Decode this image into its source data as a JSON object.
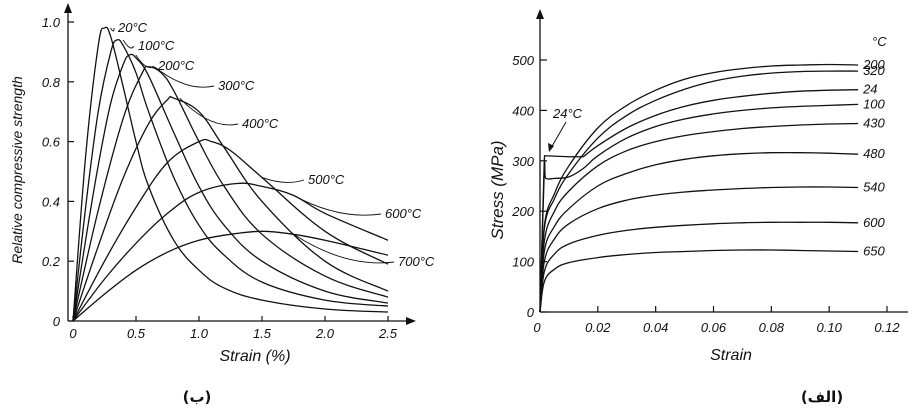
{
  "chart_data": [
    {
      "type": "line",
      "caption": "(ب)",
      "xlabel": "Strain (%)",
      "ylabel": "Relative compressive strength",
      "xlim": [
        0,
        2.5
      ],
      "ylim": [
        0,
        1.0
      ],
      "xticks": [
        "0",
        "0.5",
        "1.0",
        "1.5",
        "2.0",
        "2.5"
      ],
      "yticks": [
        "0",
        "0.2",
        "0.4",
        "0.6",
        "0.8",
        "1.0"
      ],
      "grid": false,
      "series": [
        {
          "name": "20°C",
          "x": [
            0,
            0.1,
            0.2,
            0.25,
            0.3,
            0.4,
            0.5,
            0.6,
            0.8,
            1.0,
            1.2,
            1.5,
            2.0,
            2.5
          ],
          "y": [
            0,
            0.55,
            0.92,
            0.98,
            0.95,
            0.78,
            0.6,
            0.45,
            0.27,
            0.17,
            0.11,
            0.07,
            0.04,
            0.03
          ]
        },
        {
          "name": "100°C",
          "x": [
            0,
            0.1,
            0.2,
            0.3,
            0.35,
            0.4,
            0.5,
            0.6,
            0.8,
            1.0,
            1.2,
            1.5,
            2.0,
            2.5
          ],
          "y": [
            0,
            0.38,
            0.7,
            0.9,
            0.94,
            0.92,
            0.83,
            0.7,
            0.48,
            0.32,
            0.22,
            0.13,
            0.07,
            0.05
          ]
        },
        {
          "name": "200°C",
          "x": [
            0,
            0.1,
            0.2,
            0.3,
            0.4,
            0.45,
            0.5,
            0.6,
            0.8,
            1.0,
            1.2,
            1.5,
            2.0,
            2.5
          ],
          "y": [
            0,
            0.27,
            0.52,
            0.73,
            0.86,
            0.89,
            0.88,
            0.82,
            0.63,
            0.45,
            0.32,
            0.2,
            0.1,
            0.06
          ]
        },
        {
          "name": "300°C",
          "x": [
            0,
            0.2,
            0.4,
            0.55,
            0.6,
            0.7,
            0.8,
            1.0,
            1.2,
            1.5,
            2.0,
            2.5
          ],
          "y": [
            0,
            0.37,
            0.68,
            0.83,
            0.85,
            0.83,
            0.77,
            0.6,
            0.45,
            0.29,
            0.15,
            0.08
          ]
        },
        {
          "name": "400°C",
          "x": [
            0,
            0.2,
            0.4,
            0.6,
            0.75,
            0.8,
            1.0,
            1.2,
            1.5,
            2.0,
            2.5
          ],
          "y": [
            0,
            0.25,
            0.48,
            0.66,
            0.74,
            0.745,
            0.7,
            0.58,
            0.4,
            0.2,
            0.1
          ]
        },
        {
          "name": "500°C",
          "x": [
            0,
            0.25,
            0.5,
            0.75,
            1.0,
            1.1,
            1.25,
            1.5,
            2.0,
            2.5
          ],
          "y": [
            0,
            0.2,
            0.38,
            0.53,
            0.6,
            0.6,
            0.57,
            0.48,
            0.3,
            0.19
          ]
        },
        {
          "name": "600°C",
          "x": [
            0,
            0.25,
            0.5,
            0.75,
            1.0,
            1.3,
            1.5,
            1.75,
            2.0,
            2.5
          ],
          "y": [
            0,
            0.14,
            0.26,
            0.36,
            0.43,
            0.46,
            0.45,
            0.42,
            0.36,
            0.27
          ]
        },
        {
          "name": "700°C",
          "x": [
            0,
            0.25,
            0.5,
            0.75,
            1.0,
            1.25,
            1.5,
            1.75,
            2.0,
            2.5
          ],
          "y": [
            0,
            0.09,
            0.17,
            0.23,
            0.27,
            0.29,
            0.3,
            0.29,
            0.27,
            0.22
          ]
        }
      ]
    },
    {
      "type": "line",
      "caption": "(الف)",
      "xlabel": "Strain",
      "ylabel": "Stress (MPa)",
      "xlim": [
        0,
        0.12
      ],
      "ylim": [
        0,
        500
      ],
      "xticks": [
        "0",
        "0.02",
        "0.04",
        "0.06",
        "0.08",
        "0.10",
        "0.12"
      ],
      "yticks": [
        "0",
        "100",
        "200",
        "300",
        "400",
        "500"
      ],
      "grid": false,
      "legend_title": "°C",
      "annotation": "24°C",
      "series": [
        {
          "name": "200",
          "x": [
            0,
            0.0015,
            0.005,
            0.01,
            0.02,
            0.03,
            0.04,
            0.05,
            0.06,
            0.07,
            0.08,
            0.09,
            0.1,
            0.11
          ],
          "y": [
            0,
            170,
            235,
            290,
            365,
            410,
            440,
            462,
            475,
            483,
            488,
            490,
            491,
            490
          ]
        },
        {
          "name": "320",
          "x": [
            0,
            0.0015,
            0.005,
            0.01,
            0.02,
            0.03,
            0.04,
            0.05,
            0.06,
            0.07,
            0.08,
            0.09,
            0.1,
            0.11
          ],
          "y": [
            0,
            165,
            225,
            275,
            345,
            390,
            420,
            442,
            458,
            468,
            474,
            477,
            478,
            478
          ]
        },
        {
          "name": "24",
          "x": [
            0,
            0.0015,
            0.0016,
            0.01,
            0.015,
            0.02,
            0.03,
            0.04,
            0.05,
            0.06,
            0.07,
            0.08,
            0.09,
            0.1,
            0.11
          ],
          "y": [
            0,
            305,
            310,
            308,
            308,
            330,
            365,
            390,
            408,
            420,
            428,
            434,
            438,
            440,
            441
          ]
        },
        {
          "name": "100",
          "x": [
            0,
            0.0015,
            0.002,
            0.005,
            0.01,
            0.015,
            0.02,
            0.03,
            0.04,
            0.05,
            0.06,
            0.07,
            0.08,
            0.09,
            0.1,
            0.11
          ],
          "y": [
            0,
            280,
            265,
            265,
            268,
            285,
            310,
            345,
            368,
            383,
            393,
            400,
            405,
            408,
            410,
            412
          ]
        },
        {
          "name": "430",
          "x": [
            0,
            0.0015,
            0.005,
            0.01,
            0.02,
            0.03,
            0.04,
            0.05,
            0.06,
            0.07,
            0.08,
            0.09,
            0.1,
            0.11
          ],
          "y": [
            0,
            140,
            200,
            240,
            290,
            320,
            338,
            350,
            358,
            364,
            368,
            371,
            373,
            374
          ]
        },
        {
          "name": "480",
          "x": [
            0,
            0.0015,
            0.005,
            0.01,
            0.02,
            0.03,
            0.04,
            0.05,
            0.06,
            0.07,
            0.08,
            0.09,
            0.1,
            0.11
          ],
          "y": [
            0,
            120,
            170,
            205,
            250,
            275,
            292,
            303,
            310,
            314,
            316,
            316,
            315,
            313
          ]
        },
        {
          "name": "540",
          "x": [
            0,
            0.0015,
            0.005,
            0.01,
            0.02,
            0.03,
            0.04,
            0.05,
            0.06,
            0.07,
            0.08,
            0.09,
            0.1,
            0.11
          ],
          "y": [
            0,
            100,
            145,
            175,
            205,
            222,
            232,
            238,
            242,
            245,
            247,
            248,
            248,
            247
          ]
        },
        {
          "name": "600",
          "x": [
            0,
            0.0015,
            0.005,
            0.01,
            0.02,
            0.03,
            0.04,
            0.05,
            0.06,
            0.07,
            0.08,
            0.09,
            0.1,
            0.11
          ],
          "y": [
            0,
            80,
            115,
            135,
            152,
            162,
            168,
            172,
            175,
            177,
            178,
            178,
            178,
            177
          ]
        },
        {
          "name": "650",
          "x": [
            0,
            0.0015,
            0.005,
            0.01,
            0.02,
            0.03,
            0.04,
            0.05,
            0.06,
            0.07,
            0.08,
            0.09,
            0.1,
            0.11
          ],
          "y": [
            0,
            60,
            85,
            98,
            108,
            114,
            118,
            120,
            122,
            123,
            123,
            122,
            121,
            120
          ]
        }
      ]
    }
  ]
}
